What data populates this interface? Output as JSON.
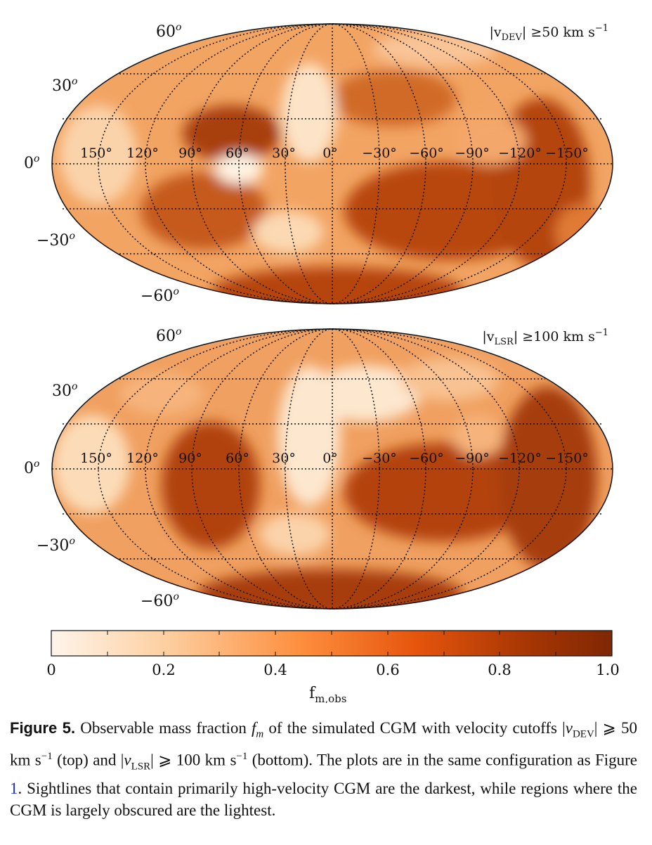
{
  "maps": [
    {
      "annotation_var": "|v",
      "annotation_sub": "DEV",
      "annotation_rest": "| ≥50 km s",
      "annotation_exp": "−1",
      "lat_labels": [
        "60",
        "30",
        "0",
        "−30",
        "−60"
      ],
      "lat_degree": "o",
      "lon_labels": [
        "150°",
        "120°",
        "90°",
        "60°",
        "30°",
        "0°",
        "−30°",
        "−60°",
        "−90°",
        "−120°",
        "−150°"
      ]
    },
    {
      "annotation_var": "|v",
      "annotation_sub": "LSR",
      "annotation_rest": "| ≥100 km s",
      "annotation_exp": "−1",
      "lat_labels": [
        "60",
        "30",
        "0",
        "−30",
        "−60"
      ],
      "lat_degree": "o",
      "lon_labels": [
        "150°",
        "120°",
        "90°",
        "60°",
        "30°",
        "0°",
        "−30°",
        "−60°",
        "−90°",
        "−120°",
        "−150°"
      ]
    }
  ],
  "colorbar": {
    "ticks": [
      "0",
      "0.2",
      "0.4",
      "0.6",
      "0.8",
      "1.0"
    ],
    "label_main": "f",
    "label_sub": "m,obs",
    "colors": [
      "#fff5eb",
      "#fdd0a2",
      "#fd8d3c",
      "#e6550d",
      "#a63603",
      "#7f2704"
    ]
  },
  "caption": {
    "label": "Figure 5.",
    "t1": " Observable mass fraction ",
    "fm_main": "f",
    "fm_sub": "m",
    "t2": " of the simulated CGM with velocity cutoffs |",
    "v1_main": "v",
    "v1_sub": "DEV",
    "t3": "| ⩾ 50 km s",
    "exp1": "−1",
    "t4": " (top) and |",
    "v2_main": "v",
    "v2_sub": "LSR",
    "t5": "| ⩾ 100 km s",
    "exp2": "−1",
    "t6": " (bottom). The plots are in the same configuration as Figure ",
    "ref": "1",
    "t7": ". Sightlines that contain primarily high-velocity CGM are the darkest, while regions where the CGM is largely obscured are the lightest."
  }
}
